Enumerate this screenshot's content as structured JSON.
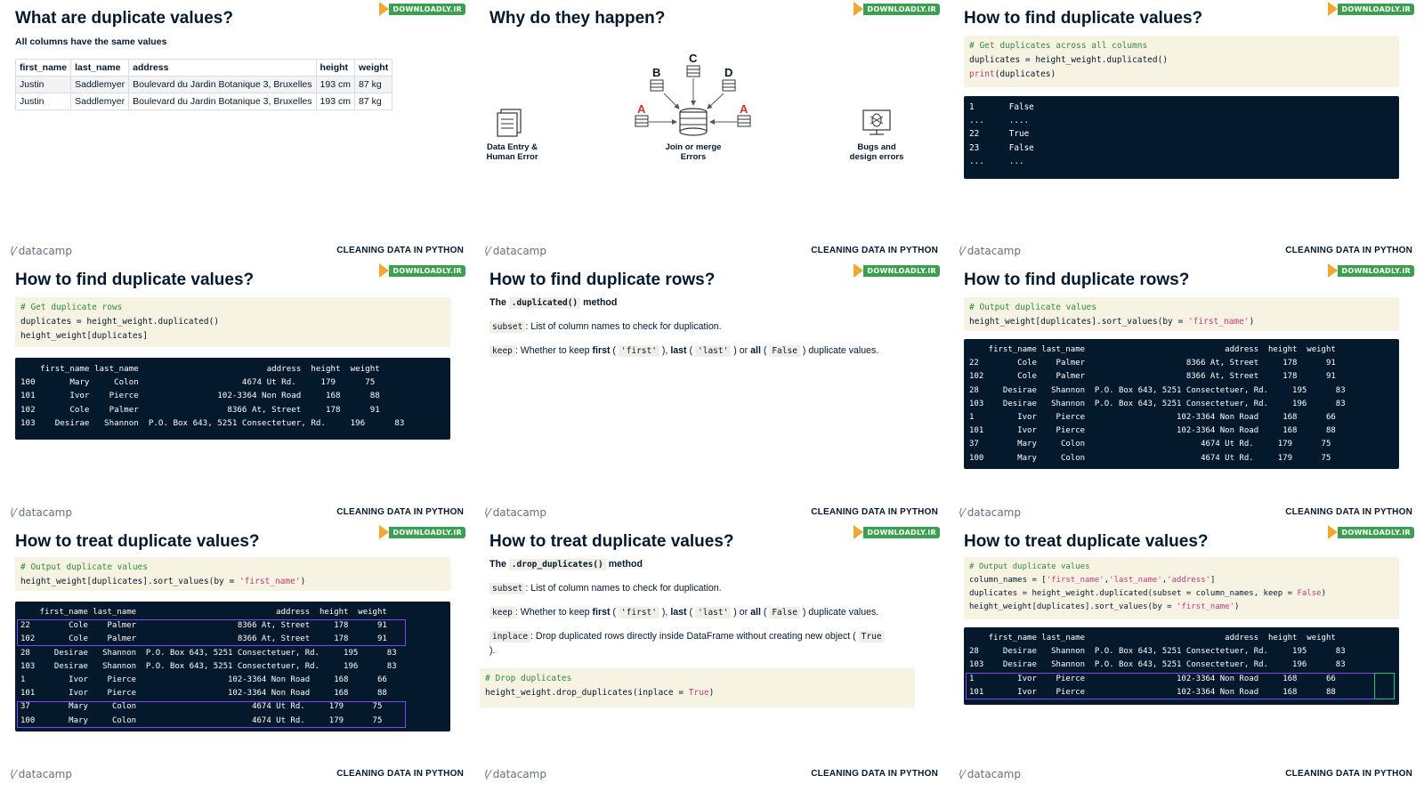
{
  "brand": {
    "logo_text": "DOWNLOADLY.IR",
    "platform": "datacamp",
    "course": "CLEANING DATA IN PYTHON"
  },
  "slides": {
    "s1": {
      "title": "What are duplicate values?",
      "subtitle": "All columns have the same values",
      "table": {
        "headers": [
          "first_name",
          "last_name",
          "address",
          "height",
          "weight"
        ],
        "rows": [
          [
            "Justin",
            "Saddlemyer",
            "Boulevard du Jardin Botanique 3, Bruxelles",
            "193 cm",
            "87 kg"
          ],
          [
            "Justin",
            "Saddlemyer",
            "Boulevard du Jardin Botanique 3, Bruxelles",
            "193 cm",
            "87 kg"
          ]
        ]
      }
    },
    "s2": {
      "title": "Why do they happen?",
      "labels": {
        "data_entry": "Data Entry & Human Error",
        "join_merge": "Join or merge Errors",
        "bugs": "Bugs and design errors"
      },
      "letters": [
        "A",
        "B",
        "C",
        "D",
        "A"
      ]
    },
    "s3": {
      "title": "How to find duplicate values?",
      "code": [
        "# Get duplicates across all columns",
        "duplicates = height_weight.duplicated()",
        "print(duplicates)"
      ],
      "output": [
        "1       False",
        "...     ....",
        "22      True",
        "23      False",
        "...     ..."
      ]
    },
    "s4": {
      "title": "How to find duplicate values?",
      "code": [
        "# Get duplicate rows",
        "duplicates = height_weight.duplicated()",
        "height_weight[duplicates]"
      ],
      "output": [
        "    first_name last_name                          address  height  weight",
        "100       Mary     Colon                     4674 Ut Rd.     179      75",
        "101       Ivor    Pierce                102-3364 Non Road     168      88",
        "102       Cole    Palmer                  8366 At, Street     178      91",
        "103    Desirae   Shannon  P.O. Box 643, 5251 Consectetuer, Rd.     196      83"
      ]
    },
    "s5": {
      "title": "How to find duplicate rows?",
      "method_prefix": "The",
      "method_name": ".duplicated()",
      "method_suffix": "method",
      "subset_code": "subset",
      "subset_text": ": List of column names to check for duplication.",
      "keep_code": "keep",
      "keep_text_1": ": Whether to keep",
      "first_word": "first",
      "first_code": "'first'",
      "last_word": "last",
      "last_code": "'last'",
      "all_word": "all",
      "false_code": "False",
      "keep_text_end": "duplicate values."
    },
    "s6": {
      "title": "How to find duplicate rows?",
      "code": [
        "# Output duplicate values",
        "height_weight[duplicates].sort_values(by = 'first_name')"
      ],
      "output": [
        "    first_name last_name                             address  height  weight",
        "22        Cole    Palmer                     8366 At, Street     178      91",
        "102       Cole    Palmer                     8366 At, Street     178      91",
        "28     Desirae   Shannon  P.O. Box 643, 5251 Consectetuer, Rd.     195      83",
        "103    Desirae   Shannon  P.O. Box 643, 5251 Consectetuer, Rd.     196      83",
        "1         Ivor    Pierce                   102-3364 Non Road     168      66",
        "101       Ivor    Pierce                   102-3364 Non Road     168      88",
        "37        Mary     Colon                        4674 Ut Rd.     179      75",
        "100       Mary     Colon                        4674 Ut Rd.     179      75"
      ]
    },
    "s7": {
      "title": "How to treat duplicate values?",
      "code": [
        "# Output duplicate values",
        "height_weight[duplicates].sort_values(by = 'first_name')"
      ],
      "output": [
        "    first_name last_name                             address  height  weight",
        "22        Cole    Palmer                     8366 At, Street     178      91",
        "102       Cole    Palmer                     8366 At, Street     178      91",
        "28     Desirae   Shannon  P.O. Box 643, 5251 Consectetuer, Rd.     195      83",
        "103    Desirae   Shannon  P.O. Box 643, 5251 Consectetuer, Rd.     196      83",
        "1         Ivor    Pierce                   102-3364 Non Road     168      66",
        "101       Ivor    Pierce                   102-3364 Non Road     168      88",
        "37        Mary     Colon                        4674 Ut Rd.     179      75",
        "100       Mary     Colon                        4674 Ut Rd.     179      75"
      ]
    },
    "s8": {
      "title": "How to treat duplicate values?",
      "method_prefix": "The",
      "method_name": ".drop_duplicates()",
      "method_suffix": "method",
      "subset_code": "subset",
      "subset_text": ": List of column names to check for duplication.",
      "keep_code": "keep",
      "keep_text_1": ": Whether to keep",
      "first_word": "first",
      "first_code": "'first'",
      "last_word": "last",
      "last_code": "'last'",
      "all_word": "all",
      "false_code": "False",
      "keep_text_end": "duplicate values.",
      "inplace_code": "inplace",
      "inplace_text": ": Drop duplicated rows directly inside DataFrame without creating new object (",
      "true_code": "True",
      "inplace_end": ").",
      "code": [
        "# Drop duplicates",
        "height_weight.drop_duplicates(inplace = True)"
      ]
    },
    "s9": {
      "title": "How to treat duplicate values?",
      "code": [
        "# Output duplicate values",
        "column_names = ['first_name','last_name','address']",
        "duplicates = height_weight.duplicated(subset = column_names, keep = False)",
        "height_weight[duplicates].sort_values(by = 'first_name')"
      ],
      "output": [
        "    first_name last_name                             address  height  weight",
        "28     Desirae   Shannon  P.O. Box 643, 5251 Consectetuer, Rd.     195      83",
        "103    Desirae   Shannon  P.O. Box 643, 5251 Consectetuer, Rd.     196      83",
        "1         Ivor    Pierce                   102-3364 Non Road     168      66",
        "101       Ivor    Pierce                   102-3364 Non Road     168      88"
      ]
    }
  },
  "colors": {
    "accent": "#7a4bf2",
    "highlight_green": "#2fc27a",
    "dark_bg": "#05192d",
    "code_bg": "#f7f3e3"
  }
}
